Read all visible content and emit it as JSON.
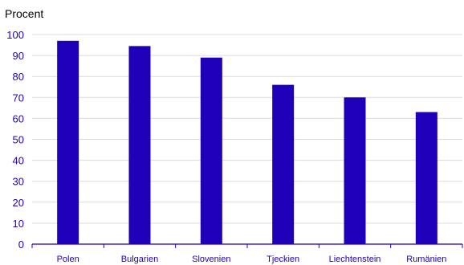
{
  "chart_data": {
    "type": "bar",
    "ylabel": "Procent",
    "categories": [
      "Polen",
      "Bulgarien",
      "Slovenien",
      "Tjeckien",
      "Liechtenstein",
      "Rumänien"
    ],
    "values": [
      97,
      94.5,
      89,
      76,
      70,
      63
    ],
    "ylim": [
      0,
      100
    ],
    "yticks": [
      0,
      10,
      20,
      30,
      40,
      50,
      60,
      70,
      80,
      90,
      100
    ],
    "grid": "horizontal",
    "legend": "none",
    "colors": {
      "bar": "#1f00b8",
      "text": "#1f00b8",
      "grid": "#d9d9e8",
      "axis": "#1f00b8"
    }
  }
}
